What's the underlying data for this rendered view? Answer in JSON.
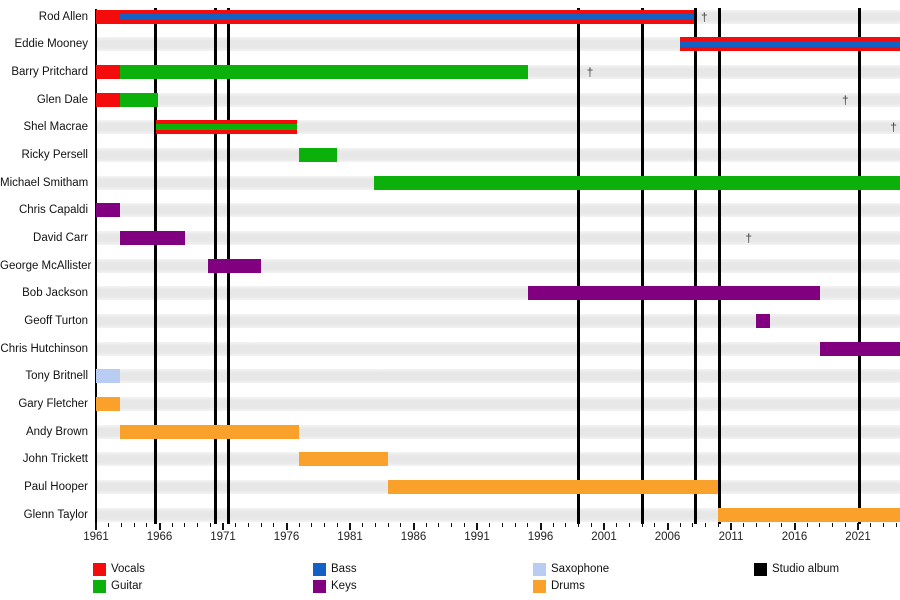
{
  "chart_data": {
    "type": "timeline",
    "x_axis": {
      "start": 1961,
      "end": 2024.4,
      "major_tick_labels": [
        1961,
        1966,
        1971,
        1976,
        1981,
        1986,
        1991,
        1996,
        2001,
        2006,
        2011,
        2016,
        2021
      ],
      "minor_tick_interval": 1,
      "grid": false
    },
    "colors": {
      "vocals": "#f40b0b",
      "guitar": "#0bb00b",
      "bass": "#1361c4",
      "keys": "#800080",
      "saxophone": "#b9cdf3",
      "drums": "#f9a12b",
      "studio_album": "#000000",
      "row_band": "#e8e8e8"
    },
    "dagger_symbol": "†",
    "members": [
      {
        "name": "Rod Allen",
        "bars": [
          {
            "instrument": "vocals",
            "start": 1961,
            "end": 2008.1,
            "overlay": {
              "instrument": "bass",
              "start": 1962.9,
              "end": 2008.1
            }
          }
        ],
        "dagger": 2008.9
      },
      {
        "name": "Eddie Mooney",
        "bars": [
          {
            "instrument": "vocals",
            "start": 2007,
            "end": 2024.4,
            "overlay": {
              "instrument": "bass",
              "start": 2007,
              "end": 2024.4
            }
          }
        ],
        "dagger": null
      },
      {
        "name": "Barry Pritchard",
        "bars": [
          {
            "instrument": "vocals",
            "start": 1961,
            "end": 1962.9
          },
          {
            "instrument": "guitar",
            "start": 1962.9,
            "end": 1995
          }
        ],
        "dagger": 1999.9
      },
      {
        "name": "Glen Dale",
        "bars": [
          {
            "instrument": "vocals",
            "start": 1961,
            "end": 1962.9
          },
          {
            "instrument": "guitar",
            "start": 1962.9,
            "end": 1965.9
          }
        ],
        "dagger": 2020
      },
      {
        "name": "Shel Macrae",
        "bars": [
          {
            "instrument": "vocals",
            "start": 1965.7,
            "end": 1976.8,
            "overlay": {
              "instrument": "guitar",
              "start": 1965.7,
              "end": 1976.8
            }
          }
        ],
        "dagger": 2023.8
      },
      {
        "name": "Ricky Persell",
        "bars": [
          {
            "instrument": "guitar",
            "start": 1977,
            "end": 1980
          }
        ],
        "dagger": null
      },
      {
        "name": "Michael Smitham",
        "bars": [
          {
            "instrument": "guitar",
            "start": 1982.9,
            "end": 2024.4
          }
        ],
        "dagger": null
      },
      {
        "name": "Chris Capaldi",
        "bars": [
          {
            "instrument": "keys",
            "start": 1961,
            "end": 1962.9
          }
        ],
        "dagger": null
      },
      {
        "name": "David Carr",
        "bars": [
          {
            "instrument": "keys",
            "start": 1962.9,
            "end": 1968
          }
        ],
        "dagger": 2012.4
      },
      {
        "name": "George McAllister",
        "bars": [
          {
            "instrument": "keys",
            "start": 1969.8,
            "end": 1974
          }
        ],
        "dagger": null
      },
      {
        "name": "Bob Jackson",
        "bars": [
          {
            "instrument": "keys",
            "start": 1995,
            "end": 2018
          }
        ],
        "dagger": null
      },
      {
        "name": "Geoff Turton",
        "bars": [
          {
            "instrument": "keys",
            "start": 2013,
            "end": 2014.1
          }
        ],
        "dagger": null
      },
      {
        "name": "Chris Hutchinson",
        "bars": [
          {
            "instrument": "keys",
            "start": 2018,
            "end": 2024.4
          }
        ],
        "dagger": null
      },
      {
        "name": "Tony Britnell",
        "bars": [
          {
            "instrument": "saxophone",
            "start": 1961,
            "end": 1962.9
          }
        ],
        "dagger": null
      },
      {
        "name": "Gary Fletcher",
        "bars": [
          {
            "instrument": "drums",
            "start": 1961,
            "end": 1962.9
          }
        ],
        "dagger": null
      },
      {
        "name": "Andy Brown",
        "bars": [
          {
            "instrument": "drums",
            "start": 1962.9,
            "end": 1977
          }
        ],
        "dagger": null
      },
      {
        "name": "John Trickett",
        "bars": [
          {
            "instrument": "drums",
            "start": 1977,
            "end": 1984
          }
        ],
        "dagger": null
      },
      {
        "name": "Paul Hooper",
        "bars": [
          {
            "instrument": "drums",
            "start": 1984,
            "end": 2010
          }
        ],
        "dagger": null
      },
      {
        "name": "Glenn Taylor",
        "bars": [
          {
            "instrument": "drums",
            "start": 2010,
            "end": 2024.4
          }
        ],
        "dagger": null
      }
    ],
    "studio_albums": [
      1965.7,
      1970.4,
      1971.4,
      1999,
      2004,
      2008.2,
      2010.1,
      2021.1
    ],
    "legend": [
      {
        "label": "Vocals",
        "instrument": "vocals"
      },
      {
        "label": "Guitar",
        "instrument": "guitar"
      },
      {
        "label": "Bass",
        "instrument": "bass"
      },
      {
        "label": "Keys",
        "instrument": "keys"
      },
      {
        "label": "Saxophone",
        "instrument": "saxophone"
      },
      {
        "label": "Drums",
        "instrument": "drums"
      },
      {
        "label": "Studio album",
        "instrument": "studio_album"
      }
    ],
    "legend_position": "bottom"
  }
}
